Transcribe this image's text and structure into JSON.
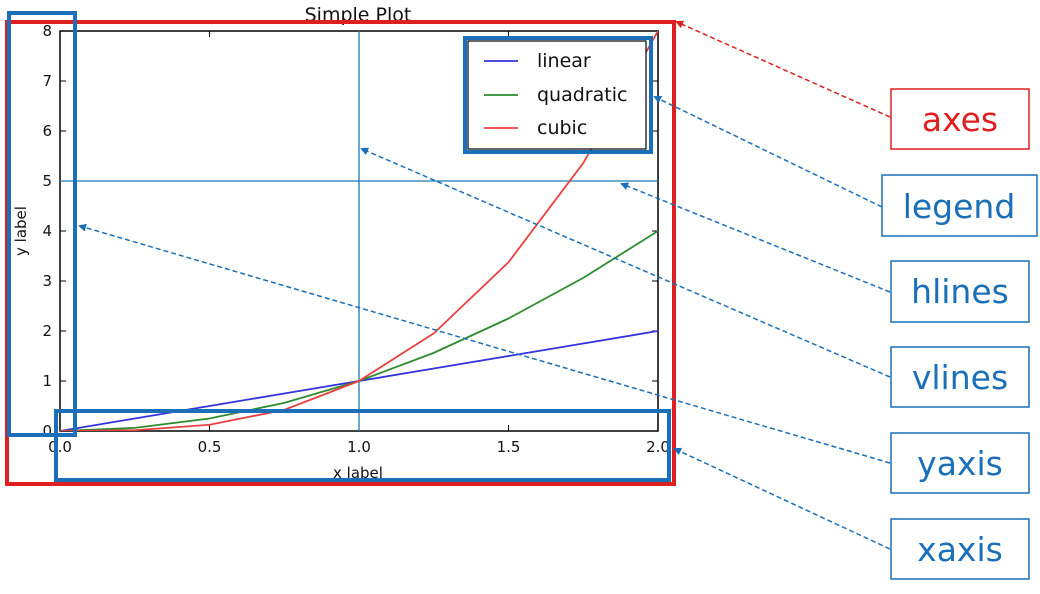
{
  "chart_data": {
    "type": "line",
    "title": "Simple Plot",
    "xlabel": "x label",
    "ylabel": "y label",
    "xlim": [
      0,
      2
    ],
    "ylim": [
      0,
      8
    ],
    "x_ticks": [
      "0.0",
      "0.5",
      "1.0",
      "1.5",
      "2.0"
    ],
    "y_ticks": [
      "0",
      "1",
      "2",
      "3",
      "4",
      "5",
      "6",
      "7",
      "8"
    ],
    "hline_y": 5,
    "vline_x": 1,
    "legend_position": "top-right",
    "series": [
      {
        "name": "linear",
        "color": "#3333dd",
        "x": [
          0,
          0.25,
          0.5,
          0.75,
          1,
          1.25,
          1.5,
          1.75,
          2
        ],
        "y": [
          0,
          0.25,
          0.5,
          0.75,
          1,
          1.25,
          1.5,
          1.75,
          2
        ]
      },
      {
        "name": "quadratic",
        "color": "#2e8b2e",
        "x": [
          0,
          0.25,
          0.5,
          0.75,
          1,
          1.25,
          1.5,
          1.75,
          2
        ],
        "y": [
          0,
          0.0625,
          0.25,
          0.5625,
          1,
          1.5625,
          2.25,
          3.0625,
          4
        ]
      },
      {
        "name": "cubic",
        "color": "#e84040",
        "x": [
          0,
          0.25,
          0.5,
          0.75,
          1,
          1.25,
          1.5,
          1.75,
          2
        ],
        "y": [
          0,
          0.0156,
          0.125,
          0.4219,
          1,
          1.9531,
          3.375,
          5.3594,
          8
        ]
      }
    ]
  },
  "annotations": [
    {
      "label": "axes",
      "color": "#dd1f1f"
    },
    {
      "label": "legend",
      "color": "#1a6fb8"
    },
    {
      "label": "hlines",
      "color": "#1a6fb8"
    },
    {
      "label": "vlines",
      "color": "#1a6fb8"
    },
    {
      "label": "yaxis",
      "color": "#1a6fb8"
    },
    {
      "label": "xaxis",
      "color": "#1a6fb8"
    }
  ]
}
